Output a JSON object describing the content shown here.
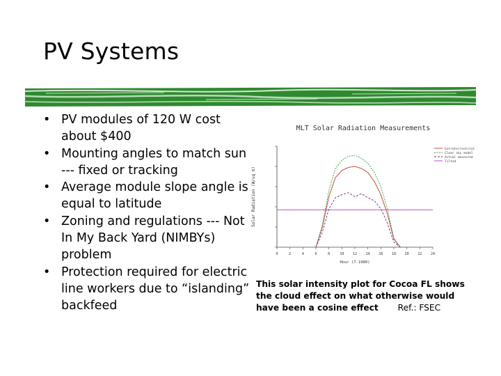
{
  "slide": {
    "title": "PV Systems",
    "bullets": [
      "PV modules of 120 W cost about $400",
      "Mounting angles to match sun --- fixed or tracking",
      "Average module slope angle is equal to latitude",
      "Zoning and regulations --- Not In My Back Yard (NIMBYs) problem",
      "Protection required for electric line workers due to “islanding” backfeed"
    ],
    "bullet_symbol": "•",
    "caption": "This solar intensity plot for Cocoa FL shows the cloud effect on what otherwise would have been a cosine effect",
    "caption_ref": "Ref.: FSEC"
  },
  "colors": {
    "brush_green": "#2f8a2f",
    "series_red": "#c0392b",
    "series_green": "#2e9e44",
    "series_purple": "#6a2a8a",
    "series_magenta": "#c030c0"
  },
  "chart_data": {
    "type": "line",
    "title": "MLT Solar Radiation Measurements",
    "xlabel": "Hour (7-1980)",
    "ylabel": "Solar Radiation (W/sq m)",
    "xlim": [
      0,
      24
    ],
    "ylim": [
      0,
      1000
    ],
    "x_ticks": [
      0,
      2,
      4,
      6,
      8,
      10,
      12,
      14,
      16,
      18,
      20,
      22,
      24
    ],
    "legend_position": "top-right",
    "series": [
      {
        "name": "Extraterrestrial",
        "x": [
          6,
          7,
          8,
          9,
          10,
          11,
          12,
          13,
          14,
          15,
          16,
          17,
          18,
          19
        ],
        "values": [
          0,
          200,
          500,
          690,
          760,
          790,
          800,
          780,
          740,
          650,
          520,
          330,
          80,
          0
        ]
      },
      {
        "name": "Clear sky model",
        "x": [
          6,
          7,
          8,
          9,
          10,
          11,
          12,
          13,
          14,
          15,
          16,
          17,
          18,
          19
        ],
        "values": [
          0,
          220,
          560,
          780,
          860,
          900,
          910,
          880,
          830,
          740,
          600,
          380,
          90,
          0
        ]
      },
      {
        "name": "Actual measured",
        "x": [
          6,
          7,
          8,
          9,
          10,
          11,
          12,
          13,
          14,
          15,
          16,
          17,
          18,
          19
        ],
        "values": [
          0,
          150,
          380,
          490,
          520,
          540,
          500,
          530,
          490,
          460,
          380,
          240,
          50,
          0
        ]
      },
      {
        "name": "Tilted",
        "x": [
          0,
          24
        ],
        "values": [
          370,
          370
        ]
      }
    ]
  }
}
